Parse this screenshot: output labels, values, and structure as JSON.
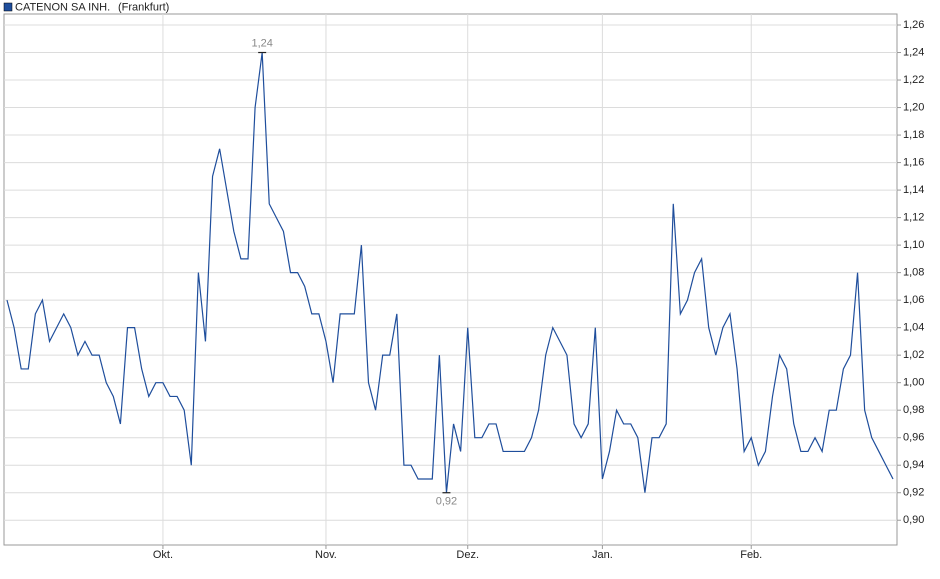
{
  "chart_data": {
    "type": "line",
    "subtitle": "(Frankfurt)",
    "categories": [
      null,
      null,
      null,
      null,
      null,
      null,
      null,
      null,
      null,
      null,
      null,
      null,
      null,
      null,
      null,
      null,
      null,
      null,
      null,
      null,
      null,
      null,
      "Okt.",
      null,
      null,
      null,
      null,
      null,
      null,
      null,
      null,
      null,
      null,
      null,
      null,
      null,
      null,
      null,
      null,
      null,
      null,
      null,
      null,
      null,
      null,
      "Nov.",
      null,
      null,
      null,
      null,
      null,
      null,
      null,
      null,
      null,
      null,
      null,
      null,
      null,
      null,
      null,
      null,
      null,
      null,
      null,
      "Dez.",
      null,
      null,
      null,
      null,
      null,
      null,
      null,
      null,
      null,
      null,
      null,
      null,
      null,
      null,
      null,
      null,
      null,
      null,
      "Jan.",
      null,
      null,
      null,
      null,
      null,
      null,
      null,
      null,
      null,
      null,
      null,
      null,
      null,
      null,
      null,
      null,
      null,
      null,
      null,
      null,
      "Feb.",
      null,
      null,
      null,
      null,
      null,
      null,
      null,
      null,
      null,
      null,
      null,
      null,
      null,
      null,
      null,
      null,
      null,
      null,
      null,
      null
    ],
    "series": [
      {
        "name": "CATENON SA INH.",
        "color": "#1f4e9c",
        "values": [
          1.06,
          1.04,
          1.01,
          1.01,
          1.05,
          1.06,
          1.03,
          1.04,
          1.05,
          1.04,
          1.02,
          1.03,
          1.02,
          1.02,
          1.0,
          0.99,
          0.97,
          1.04,
          1.04,
          1.01,
          0.99,
          1.0,
          1.0,
          0.99,
          0.99,
          0.98,
          0.94,
          1.08,
          1.03,
          1.15,
          1.17,
          1.14,
          1.11,
          1.09,
          1.09,
          1.2,
          1.24,
          1.13,
          1.12,
          1.11,
          1.08,
          1.08,
          1.07,
          1.05,
          1.05,
          1.03,
          1.0,
          1.05,
          1.05,
          1.05,
          1.1,
          1.0,
          0.98,
          1.02,
          1.02,
          1.05,
          0.94,
          0.94,
          0.93,
          0.93,
          0.93,
          1.02,
          0.92,
          0.97,
          0.95,
          1.04,
          0.96,
          0.96,
          0.97,
          0.97,
          0.95,
          0.95,
          0.95,
          0.95,
          0.96,
          0.98,
          1.02,
          1.04,
          1.03,
          1.02,
          0.97,
          0.96,
          0.97,
          1.04,
          0.93,
          0.95,
          0.98,
          0.97,
          0.97,
          0.96,
          0.92,
          0.96,
          0.96,
          0.97,
          1.13,
          1.05,
          1.06,
          1.08,
          1.09,
          1.04,
          1.02,
          1.04,
          1.05,
          1.01,
          0.95,
          0.96,
          0.94,
          0.95,
          0.99,
          1.02,
          1.01,
          0.97,
          0.95,
          0.95,
          0.96,
          0.95,
          0.98,
          0.98,
          1.01,
          1.02,
          1.08,
          0.98,
          0.96,
          0.95,
          0.94,
          0.93
        ]
      }
    ],
    "annotations": [
      {
        "value": 1.24,
        "label": "1,24"
      },
      {
        "value": 0.92,
        "label": "0,92"
      }
    ],
    "ylim": [
      0.882,
      1.268
    ],
    "yticks": [
      {
        "value": 0.9,
        "label": "0,90"
      },
      {
        "value": 0.92,
        "label": "0,92"
      },
      {
        "value": 0.94,
        "label": "0,94"
      },
      {
        "value": 0.96,
        "label": "0,96"
      },
      {
        "value": 0.98,
        "label": "0,98"
      },
      {
        "value": 1.0,
        "label": "1,00"
      },
      {
        "value": 1.02,
        "label": "1,02"
      },
      {
        "value": 1.04,
        "label": "1,04"
      },
      {
        "value": 1.06,
        "label": "1,06"
      },
      {
        "value": 1.08,
        "label": "1,08"
      },
      {
        "value": 1.1,
        "label": "1,10"
      },
      {
        "value": 1.12,
        "label": "1,12"
      },
      {
        "value": 1.14,
        "label": "1,14"
      },
      {
        "value": 1.16,
        "label": "1,16"
      },
      {
        "value": 1.18,
        "label": "1,18"
      },
      {
        "value": 1.2,
        "label": "1,20"
      },
      {
        "value": 1.22,
        "label": "1,22"
      },
      {
        "value": 1.24,
        "label": "1,24"
      },
      {
        "value": 1.26,
        "label": "1,26"
      }
    ],
    "grid": true
  }
}
